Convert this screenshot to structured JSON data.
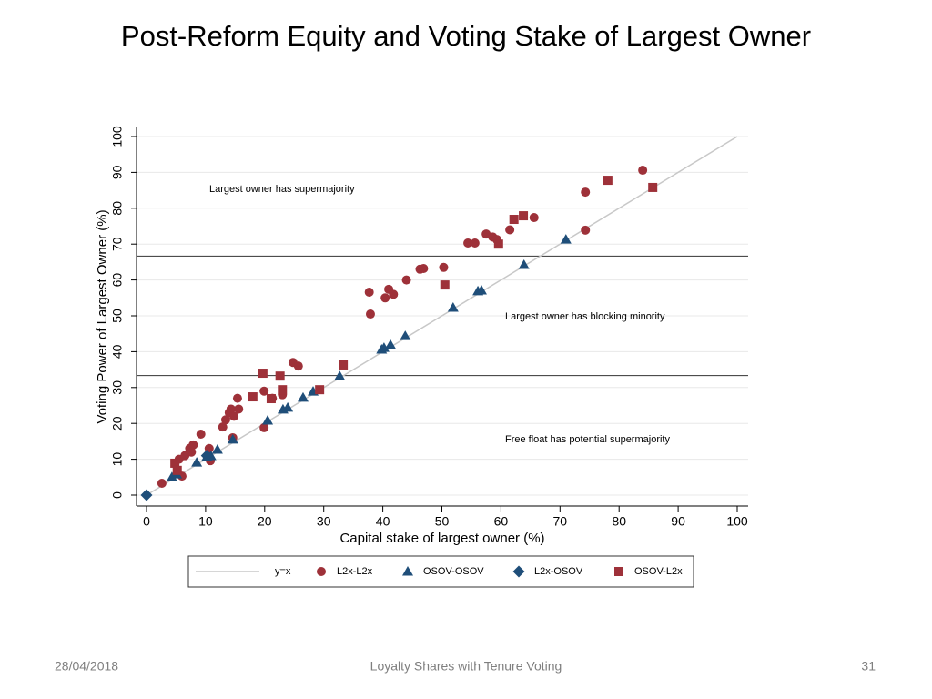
{
  "slide_title": "Post-Reform Equity and Voting Stake of Largest Owner",
  "footer": {
    "date": "28/04/2018",
    "center": "Loyalty Shares with Tenure Voting",
    "page": "31"
  },
  "chart_data": {
    "type": "scatter",
    "xlabel": "Capital stake of largest owner (%)",
    "ylabel": "Voting Power of Largest Owner (%)",
    "xlim": [
      0,
      100
    ],
    "ylim": [
      0,
      100
    ],
    "xticks": [
      0,
      10,
      20,
      30,
      40,
      50,
      60,
      70,
      80,
      90,
      100
    ],
    "yticks": [
      0,
      10,
      20,
      30,
      40,
      50,
      60,
      70,
      80,
      90,
      100
    ],
    "grid": true,
    "hlines": [
      33.33,
      66.67
    ],
    "annotations": [
      "Largest owner has supermajority",
      "Largest owner has blocking minority",
      "Free float has potential supermajority"
    ],
    "series": [
      {
        "name": "y=x",
        "type": "line",
        "marker": "none",
        "color": "#c8c8c8",
        "x": [
          0,
          100
        ],
        "values": [
          0,
          100
        ]
      },
      {
        "name": "L2x-L2x",
        "marker": "circle",
        "color": "#9e3139",
        "x": [
          2.6,
          6,
          5.5,
          6.5,
          7.3,
          7.9,
          7.6,
          9.2,
          10.6,
          10.8,
          12.9,
          13.4,
          14,
          14.3,
          14.8,
          15.6,
          15.4,
          14.6,
          19.9,
          19.9,
          21.3,
          23,
          24.8,
          25.7,
          37.7,
          37.9,
          40.4,
          41,
          41.8,
          44,
          46.3,
          46.9,
          50.3,
          54.4,
          55.6,
          57.5,
          58.6,
          59.3,
          61.5,
          65.6,
          74.3,
          74.3,
          84
        ],
        "values": [
          3.3,
          5.3,
          10,
          11,
          13,
          14,
          12,
          17,
          13,
          9.6,
          19,
          21,
          23,
          24,
          22,
          24,
          27,
          16,
          18.8,
          29,
          27,
          28,
          37,
          36,
          56.6,
          50.5,
          55,
          57.4,
          56,
          60,
          63,
          63.2,
          63.5,
          70.3,
          70.3,
          72.8,
          72,
          71.3,
          74,
          77.4,
          73.9,
          84.5,
          90.6
        ]
      },
      {
        "name": "OSOV-OSOV",
        "marker": "triangle",
        "color": "#1f4e79",
        "x": [
          4.3,
          5.1,
          8.5,
          10.2,
          10.9,
          12,
          14.6,
          20.5,
          23.1,
          23.9,
          26.5,
          28.2,
          32.7,
          39.8,
          40.2,
          41.3,
          43.8,
          51.9,
          56.1,
          56.7,
          63.9,
          71
        ],
        "values": [
          5,
          5.8,
          9.1,
          10.7,
          10.9,
          12.7,
          15.5,
          20.8,
          23.9,
          24.4,
          27.2,
          28.9,
          33.2,
          40.6,
          41.1,
          41.9,
          44.4,
          52.3,
          56.9,
          57.1,
          64.2,
          71.3
        ]
      },
      {
        "name": "L2x-OSOV",
        "marker": "diamond",
        "color": "#1f4e79",
        "x": [
          0,
          10.2
        ],
        "values": [
          0,
          11
        ]
      },
      {
        "name": "OSOV-L2x",
        "marker": "square",
        "color": "#9e3139",
        "x": [
          4.8,
          5.2,
          19.7,
          21.1,
          22.6,
          23,
          18,
          29.3,
          33.3,
          50.5,
          59.6,
          62.2,
          63.8,
          78.1,
          85.7
        ],
        "values": [
          8.9,
          6.9,
          34,
          26.9,
          33.2,
          29.4,
          27.4,
          29.4,
          36.3,
          58.6,
          70,
          76.9,
          77.9,
          87.8,
          85.8
        ]
      }
    ]
  }
}
